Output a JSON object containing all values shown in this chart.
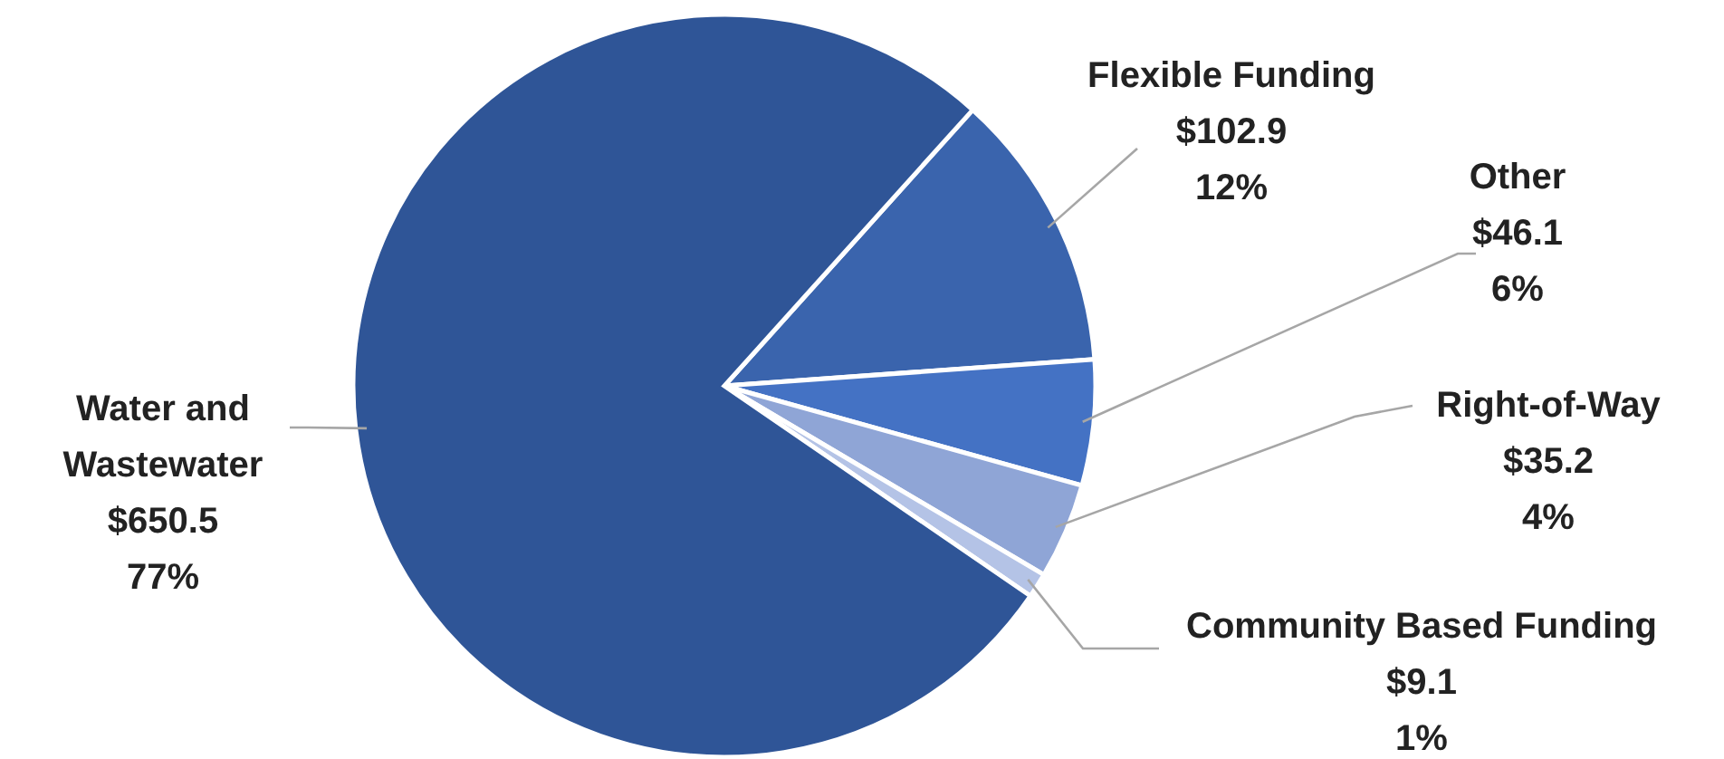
{
  "chart_data": {
    "type": "pie",
    "categories": [
      "Flexible Funding",
      "Other",
      "Right-of-Way",
      "Community Based Funding",
      "Water and Wastewater"
    ],
    "values": [
      102.9,
      46.1,
      35.2,
      9.1,
      650.5
    ],
    "colors": [
      "#3a64ad",
      "#4472c4",
      "#8fa5d6",
      "#b4c3e6",
      "#2f5597"
    ],
    "value_labels": [
      "$102.9\n12%",
      "$46.1\n6%",
      "$35.2\n4%",
      "$9.1\n1%",
      "$650.5\n77%"
    ]
  }
}
